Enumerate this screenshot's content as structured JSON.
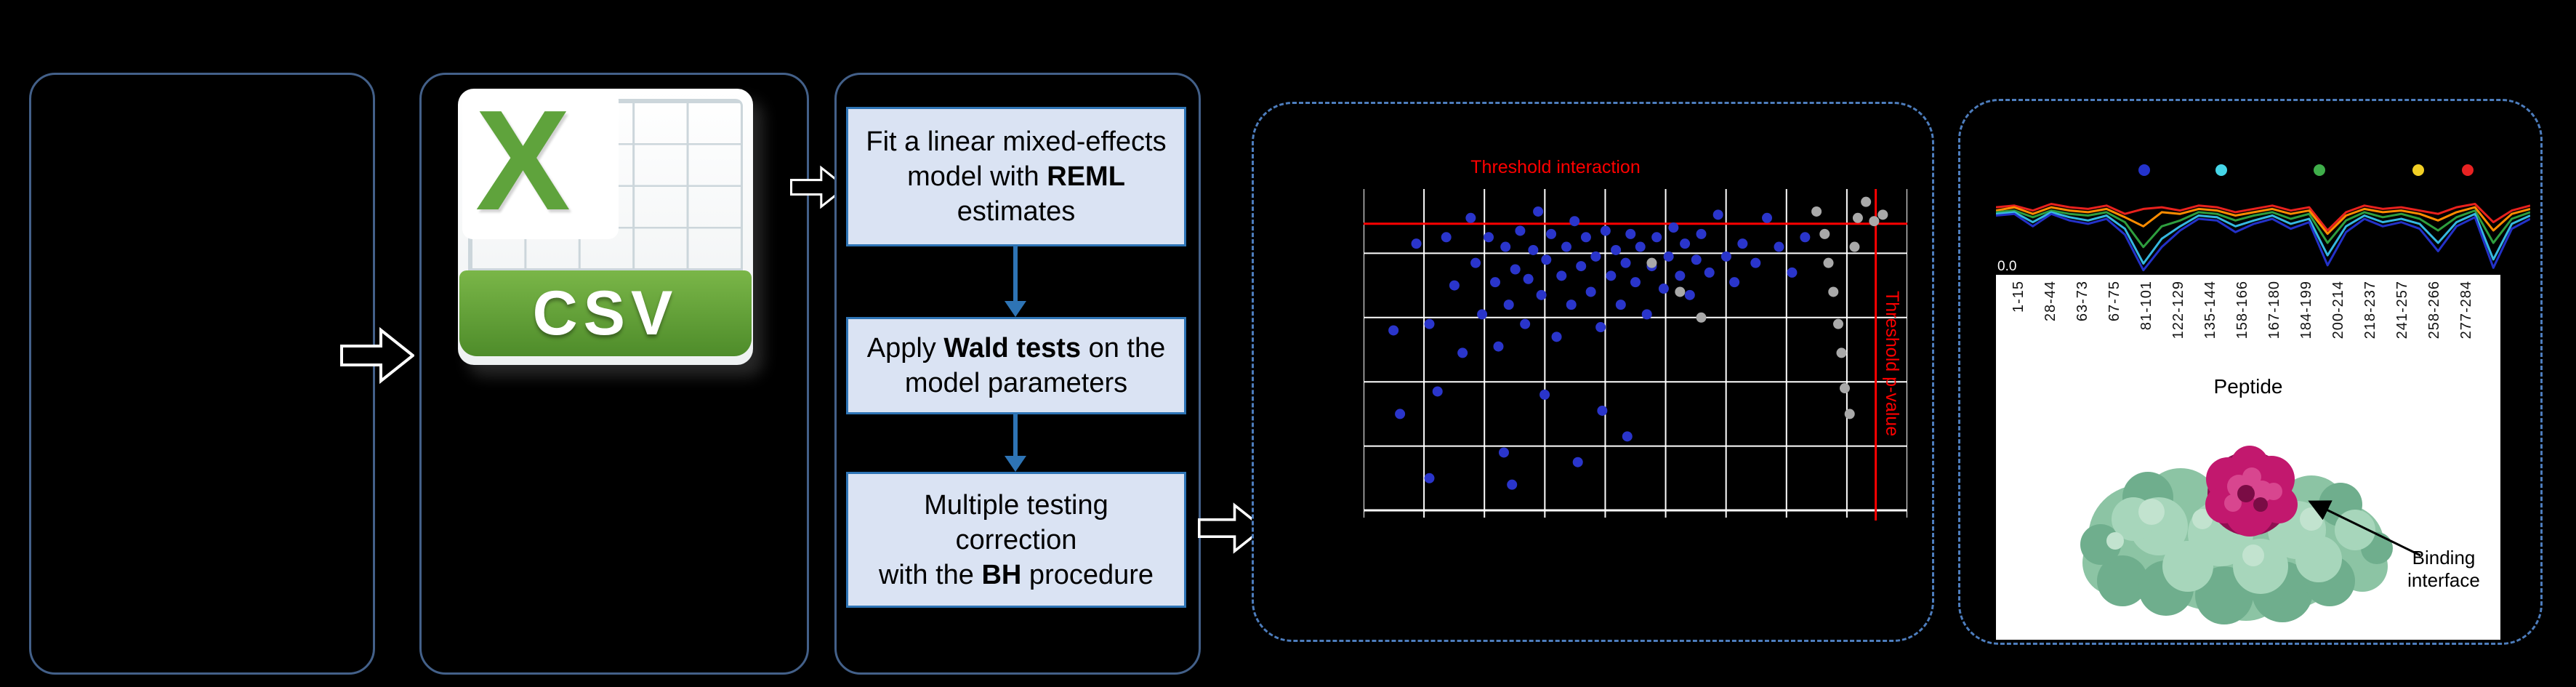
{
  "colors": {
    "background": "#000000",
    "panel_border": "#436089",
    "dashed_border": "#4d7dbd",
    "flow_box_fill": "#dae3f3",
    "flow_box_border": "#2e74b5",
    "flow_arrow_blue": "#2e74b5",
    "csv_x_green": "#5fa33c",
    "csv_banner_green": "#4e8c2a",
    "threshold_red": "#ff0000",
    "point_blue": "#2a35cb",
    "point_gray": "#a9a9a9"
  },
  "csv_icon": {
    "letter": "X",
    "label": "CSV"
  },
  "flow": {
    "boxes": [
      {
        "pre": "Fit a linear mixed-effects model with ",
        "bold": "REML",
        "post": " estimates"
      },
      {
        "pre": "Apply ",
        "bold": "Wald tests",
        "post": " on the model parameters"
      },
      {
        "pre": "Multiple testing correction\nwith the ",
        "bold": "BH",
        "post": " procedure"
      }
    ]
  },
  "volcano": {
    "threshold_interaction_label": "Threshold interaction",
    "threshold_pvalue_label": "Threshold p-value"
  },
  "profile": {
    "y_tick": "0.0",
    "xlabel": "Peptide",
    "binding_label": "Binding\ninterface"
  },
  "chart_data": [
    {
      "type": "scatter",
      "title": "",
      "annotations": [
        "Threshold interaction",
        "Threshold p-value"
      ],
      "threshold_interaction_y": 0.108,
      "threshold_pvalue_x": 0.942,
      "grid": {
        "cols": 9,
        "rows": 5,
        "on": true
      },
      "point_colors": {
        "b": "#2a35cb",
        "g": "#a9a9a9"
      },
      "points": [
        [
          0.055,
          0.44,
          "b"
        ],
        [
          0.067,
          0.7,
          "b"
        ],
        [
          0.097,
          0.17,
          "b"
        ],
        [
          0.121,
          0.42,
          "b"
        ],
        [
          0.136,
          0.63,
          "b"
        ],
        [
          0.152,
          0.15,
          "b"
        ],
        [
          0.167,
          0.3,
          "b"
        ],
        [
          0.182,
          0.51,
          "b"
        ],
        [
          0.197,
          0.09,
          "b"
        ],
        [
          0.206,
          0.23,
          "b"
        ],
        [
          0.218,
          0.39,
          "b"
        ],
        [
          0.23,
          0.15,
          "b"
        ],
        [
          0.242,
          0.29,
          "b"
        ],
        [
          0.248,
          0.49,
          "b"
        ],
        [
          0.261,
          0.18,
          "b"
        ],
        [
          0.267,
          0.36,
          "b"
        ],
        [
          0.279,
          0.25,
          "b"
        ],
        [
          0.288,
          0.13,
          "b"
        ],
        [
          0.297,
          0.42,
          "b"
        ],
        [
          0.303,
          0.28,
          "b"
        ],
        [
          0.312,
          0.19,
          "b"
        ],
        [
          0.321,
          0.07,
          "b"
        ],
        [
          0.327,
          0.33,
          "b"
        ],
        [
          0.336,
          0.22,
          "b"
        ],
        [
          0.345,
          0.14,
          "b"
        ],
        [
          0.355,
          0.46,
          "b"
        ],
        [
          0.364,
          0.27,
          "b"
        ],
        [
          0.373,
          0.18,
          "b"
        ],
        [
          0.382,
          0.36,
          "b"
        ],
        [
          0.388,
          0.1,
          "b"
        ],
        [
          0.4,
          0.24,
          "b"
        ],
        [
          0.409,
          0.15,
          "b"
        ],
        [
          0.418,
          0.32,
          "b"
        ],
        [
          0.427,
          0.21,
          "b"
        ],
        [
          0.436,
          0.43,
          "b"
        ],
        [
          0.445,
          0.13,
          "b"
        ],
        [
          0.455,
          0.27,
          "b"
        ],
        [
          0.464,
          0.19,
          "b"
        ],
        [
          0.473,
          0.36,
          "b"
        ],
        [
          0.482,
          0.23,
          "b"
        ],
        [
          0.491,
          0.14,
          "b"
        ],
        [
          0.5,
          0.29,
          "b"
        ],
        [
          0.509,
          0.18,
          "b"
        ],
        [
          0.521,
          0.39,
          "b"
        ],
        [
          0.53,
          0.24,
          "b"
        ],
        [
          0.539,
          0.15,
          "b"
        ],
        [
          0.552,
          0.31,
          "b"
        ],
        [
          0.561,
          0.21,
          "b"
        ],
        [
          0.57,
          0.12,
          "b"
        ],
        [
          0.582,
          0.27,
          "b"
        ],
        [
          0.591,
          0.17,
          "b"
        ],
        [
          0.6,
          0.33,
          "b"
        ],
        [
          0.612,
          0.22,
          "b"
        ],
        [
          0.621,
          0.14,
          "b"
        ],
        [
          0.636,
          0.26,
          "b"
        ],
        [
          0.652,
          0.08,
          "b"
        ],
        [
          0.667,
          0.21,
          "b"
        ],
        [
          0.682,
          0.29,
          "b"
        ],
        [
          0.697,
          0.17,
          "b"
        ],
        [
          0.721,
          0.23,
          "b"
        ],
        [
          0.742,
          0.09,
          "b"
        ],
        [
          0.764,
          0.18,
          "b"
        ],
        [
          0.788,
          0.26,
          "b"
        ],
        [
          0.812,
          0.15,
          "b"
        ],
        [
          0.121,
          0.9,
          "b"
        ],
        [
          0.258,
          0.82,
          "b"
        ],
        [
          0.273,
          0.92,
          "b"
        ],
        [
          0.394,
          0.85,
          "b"
        ],
        [
          0.439,
          0.69,
          "b"
        ],
        [
          0.485,
          0.77,
          "b"
        ],
        [
          0.333,
          0.64,
          "b"
        ],
        [
          0.53,
          0.23,
          "g"
        ],
        [
          0.582,
          0.32,
          "g"
        ],
        [
          0.621,
          0.4,
          "g"
        ],
        [
          0.833,
          0.07,
          "g"
        ],
        [
          0.848,
          0.14,
          "g"
        ],
        [
          0.855,
          0.23,
          "g"
        ],
        [
          0.864,
          0.32,
          "g"
        ],
        [
          0.873,
          0.42,
          "g"
        ],
        [
          0.879,
          0.51,
          "g"
        ],
        [
          0.885,
          0.62,
          "g"
        ],
        [
          0.894,
          0.7,
          "g"
        ],
        [
          0.903,
          0.18,
          "g"
        ],
        [
          0.909,
          0.09,
          "g"
        ],
        [
          0.924,
          0.04,
          "g"
        ],
        [
          0.939,
          0.1,
          "g"
        ],
        [
          0.955,
          0.08,
          "g"
        ]
      ]
    },
    {
      "type": "line",
      "title": "",
      "xlabel": "Peptide",
      "ylabel": "",
      "ylim": [
        0,
        1
      ],
      "y_tick_labels": [
        "0.0"
      ],
      "x_tick_labels": [
        "1-15",
        "28-44",
        "63-73",
        "67-75",
        "81-101",
        "122-129",
        "135-144",
        "158-166",
        "167-180",
        "184-199",
        "200-214",
        "218-237",
        "241-257",
        "258-266",
        "277-284"
      ],
      "legend": [
        {
          "color": "#2433cc",
          "x": 0.277
        },
        {
          "color": "#45d6e8",
          "x": 0.422
        },
        {
          "color": "#3fae4a",
          "x": 0.606
        },
        {
          "color": "#f2d025",
          "x": 0.791
        },
        {
          "color": "#e82222",
          "x": 0.883
        }
      ],
      "series": [
        {
          "name": "red",
          "color": "#e8211d",
          "values": [
            0.78,
            0.8,
            0.74,
            0.82,
            0.78,
            0.76,
            0.8,
            0.7,
            0.76,
            0.78,
            0.74,
            0.8,
            0.78,
            0.72,
            0.76,
            0.8,
            0.74,
            0.78,
            0.5,
            0.72,
            0.8,
            0.76,
            0.78,
            0.74,
            0.7,
            0.78,
            0.82,
            0.6,
            0.74,
            0.8
          ]
        },
        {
          "name": "orange",
          "color": "#ff8c00",
          "values": [
            0.74,
            0.78,
            0.7,
            0.78,
            0.74,
            0.72,
            0.76,
            0.66,
            0.55,
            0.72,
            0.7,
            0.76,
            0.74,
            0.68,
            0.72,
            0.76,
            0.7,
            0.74,
            0.46,
            0.68,
            0.76,
            0.72,
            0.74,
            0.7,
            0.62,
            0.72,
            0.78,
            0.5,
            0.7,
            0.76
          ]
        },
        {
          "name": "green",
          "color": "#2e9e3e",
          "values": [
            0.72,
            0.74,
            0.66,
            0.74,
            0.7,
            0.68,
            0.72,
            0.6,
            0.3,
            0.55,
            0.62,
            0.72,
            0.7,
            0.62,
            0.68,
            0.72,
            0.64,
            0.7,
            0.35,
            0.62,
            0.72,
            0.66,
            0.7,
            0.64,
            0.5,
            0.66,
            0.74,
            0.35,
            0.64,
            0.72
          ]
        },
        {
          "name": "cyan",
          "color": "#35b8e0",
          "values": [
            0.7,
            0.72,
            0.6,
            0.72,
            0.66,
            0.62,
            0.68,
            0.52,
            0.1,
            0.4,
            0.55,
            0.68,
            0.66,
            0.55,
            0.62,
            0.68,
            0.58,
            0.64,
            0.2,
            0.55,
            0.68,
            0.6,
            0.64,
            0.58,
            0.35,
            0.6,
            0.7,
            0.15,
            0.58,
            0.68
          ]
        },
        {
          "name": "navy",
          "color": "#2331c8",
          "values": [
            0.68,
            0.7,
            0.55,
            0.7,
            0.62,
            0.58,
            0.64,
            0.45,
            0.02,
            0.3,
            0.5,
            0.64,
            0.62,
            0.48,
            0.58,
            0.64,
            0.52,
            0.6,
            0.08,
            0.48,
            0.64,
            0.55,
            0.6,
            0.52,
            0.25,
            0.55,
            0.66,
            0.05,
            0.52,
            0.64
          ]
        }
      ]
    }
  ]
}
